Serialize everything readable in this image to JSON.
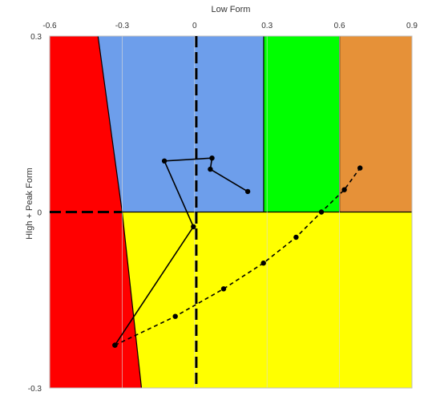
{
  "chart_data": {
    "type": "line",
    "title": "",
    "xlabel": "Low Form",
    "ylabel": "HIgh + Peak Form",
    "xlim": [
      -0.6,
      0.9
    ],
    "ylim": [
      -0.3,
      0.3
    ],
    "x_ticks": [
      -0.6,
      -0.3,
      0,
      0.3,
      0.6,
      0.9
    ],
    "x_tick_labels": [
      "-0.6",
      "-0.3",
      "0",
      "0.3",
      "0.6",
      "0.9"
    ],
    "y_ticks": [
      0.3,
      0,
      -0.3
    ],
    "y_tick_labels": [
      "0.3",
      "0",
      "-0.3"
    ],
    "x_axis_position": "top",
    "grid": true,
    "legend": "none",
    "regions": [
      {
        "name": "red",
        "color": "#ff0000",
        "polygon": [
          [
            -0.6,
            0.3
          ],
          [
            -0.4,
            0.3
          ],
          [
            -0.3,
            0
          ],
          [
            -0.22,
            -0.3
          ],
          [
            -0.6,
            -0.3
          ]
        ]
      },
      {
        "name": "blue",
        "color": "#6d9eeb",
        "polygon": [
          [
            -0.4,
            0.3
          ],
          [
            0.286,
            0.3
          ],
          [
            0.286,
            0
          ],
          [
            -0.3,
            0
          ]
        ]
      },
      {
        "name": "green",
        "color": "#00ff00",
        "polygon": [
          [
            0.286,
            0.3
          ],
          [
            0.6,
            0.3
          ],
          [
            0.6,
            0
          ],
          [
            0.286,
            0
          ]
        ]
      },
      {
        "name": "orange",
        "color": "#e69138",
        "polygon": [
          [
            0.6,
            0.3
          ],
          [
            0.9,
            0.3
          ],
          [
            0.9,
            0
          ],
          [
            0.6,
            0
          ]
        ]
      },
      {
        "name": "yellow",
        "color": "#ffff00",
        "polygon": [
          [
            -0.3,
            0
          ],
          [
            0.9,
            0
          ],
          [
            0.9,
            -0.3
          ],
          [
            -0.22,
            -0.3
          ]
        ]
      }
    ],
    "reference_lines": [
      {
        "orientation": "vertical",
        "x": 0.007,
        "from": -0.3,
        "to": 0.3,
        "style": "dashed"
      },
      {
        "orientation": "horizontal",
        "y": 0,
        "from": -0.6,
        "to": -0.3,
        "style": "dashed"
      }
    ],
    "series": [
      {
        "line_style": "solid",
        "color": "#000000",
        "x": [
          0.22,
          0.065,
          0.072,
          -0.125,
          -0.005,
          -0.33
        ],
        "y": [
          0.035,
          0.073,
          0.092,
          0.087,
          -0.025,
          -0.227
        ]
      },
      {
        "line_style": "dashed",
        "color": "#000000",
        "x": [
          -0.33,
          -0.08,
          0.12,
          0.285,
          0.42,
          0.525,
          0.62,
          0.685
        ],
        "y": [
          -0.227,
          -0.178,
          -0.131,
          -0.087,
          -0.043,
          0.0,
          0.038,
          0.075
        ]
      }
    ]
  }
}
